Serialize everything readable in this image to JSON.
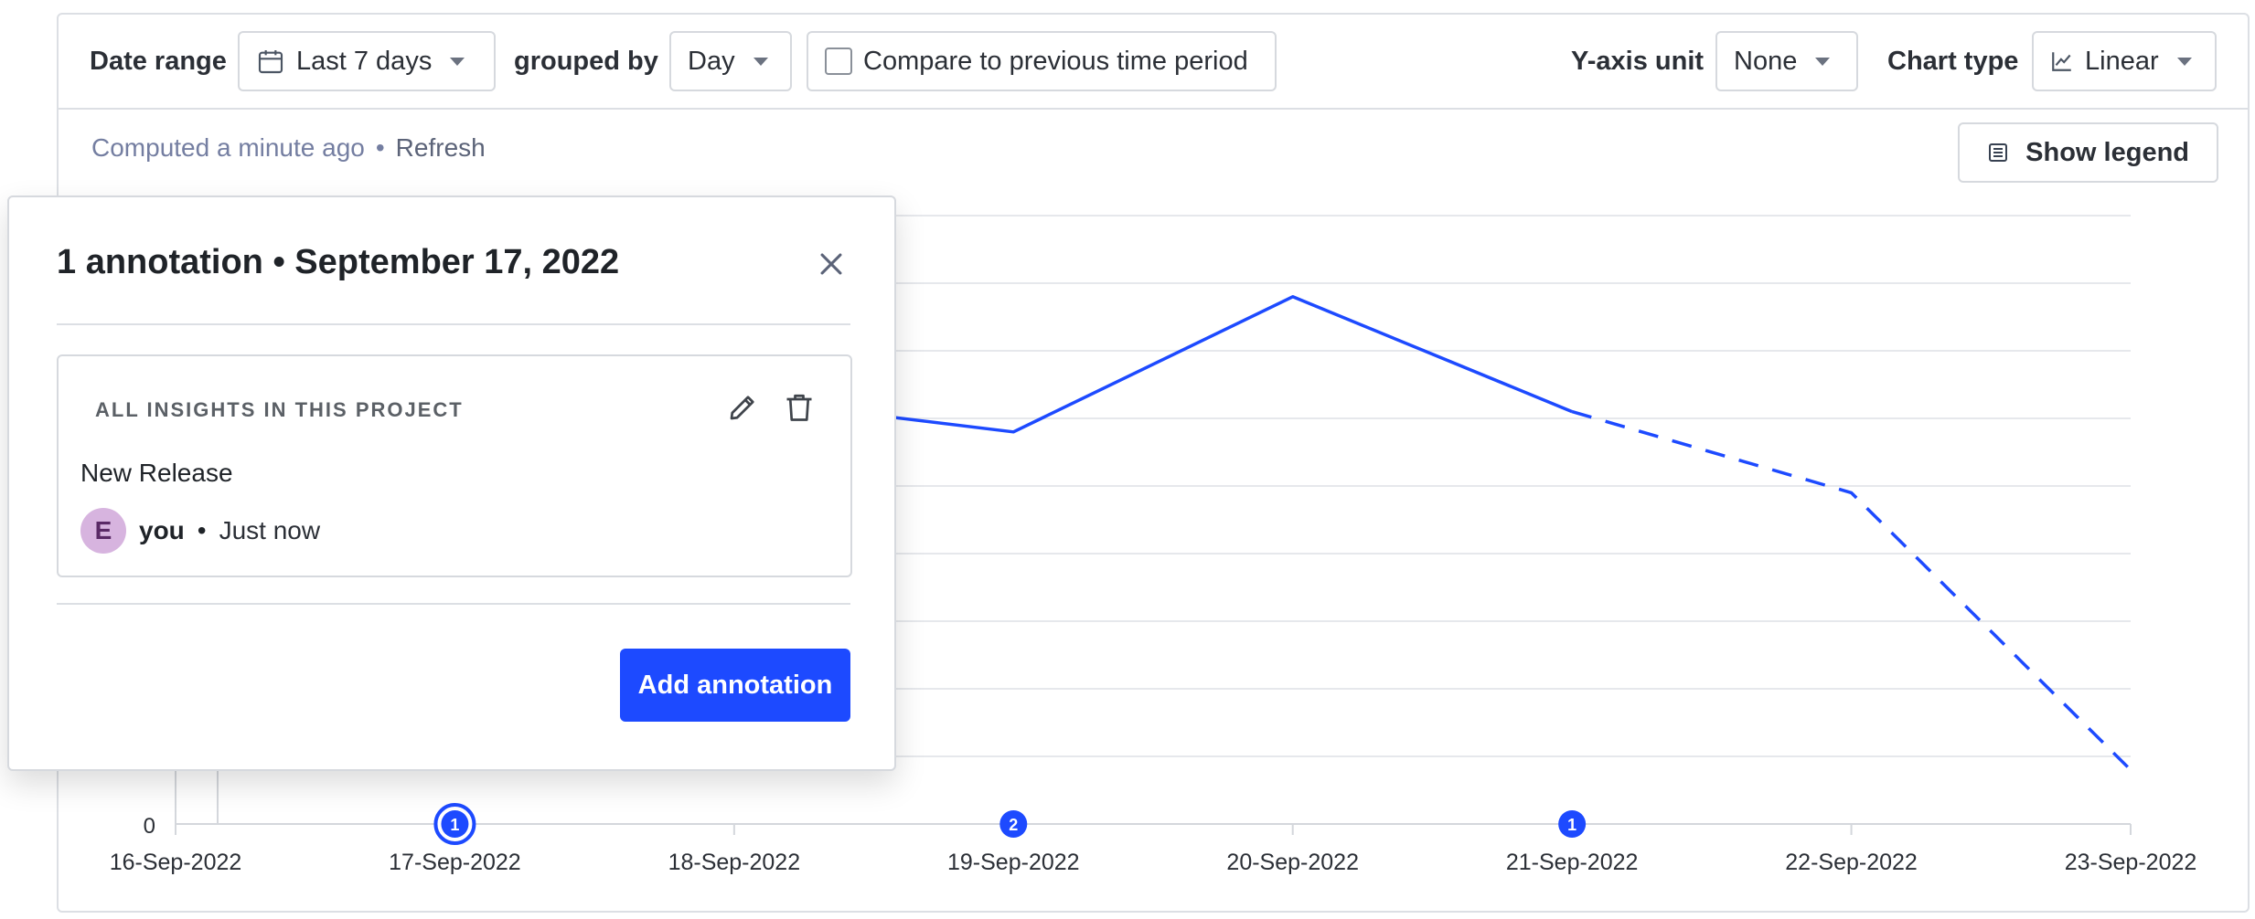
{
  "toolbar": {
    "date_range_label": "Date range",
    "date_range_value": "Last 7 days",
    "grouped_by_label": "grouped by",
    "grouped_by_value": "Day",
    "compare_label": "Compare to previous time period",
    "compare_checked": false,
    "y_axis_label": "Y-axis unit",
    "y_axis_value": "None",
    "chart_type_label": "Chart type",
    "chart_type_value": "Linear"
  },
  "status": {
    "computed": "Computed a minute ago",
    "separator": "•",
    "refresh": "Refresh"
  },
  "legend_button": "Show legend",
  "popover": {
    "title": "1 annotation • September 17, 2022",
    "annotation": {
      "scope": "ALL INSIGHTS IN THIS PROJECT",
      "text": "New Release",
      "avatar_initial": "E",
      "author": "you",
      "separator": "•",
      "time": "Just now"
    },
    "add_button": "Add annotation"
  },
  "colors": {
    "accent": "#1d4aff",
    "line": "#1d4aff",
    "grid": "#e6e8ec",
    "avatar_bg": "#d7b4df"
  },
  "chart_data": {
    "type": "line",
    "categories": [
      "16-Sep-2022",
      "17-Sep-2022",
      "18-Sep-2022",
      "19-Sep-2022",
      "20-Sep-2022",
      "21-Sep-2022",
      "22-Sep-2022",
      "23-Sep-2022"
    ],
    "y_tick_labels": [
      "0"
    ],
    "ylim": [
      0,
      9
    ],
    "series": [
      {
        "values": [
          null,
          null,
          6.3,
          5.8,
          7.8,
          6.1,
          4.9,
          0.8
        ],
        "dashed_from_index": 5
      }
    ],
    "annotation_markers": [
      {
        "category": "17-Sep-2022",
        "count": "1",
        "selected": true
      },
      {
        "category": "19-Sep-2022",
        "count": "2",
        "selected": false
      },
      {
        "category": "21-Sep-2022",
        "count": "1",
        "selected": false
      }
    ],
    "grid": true
  }
}
